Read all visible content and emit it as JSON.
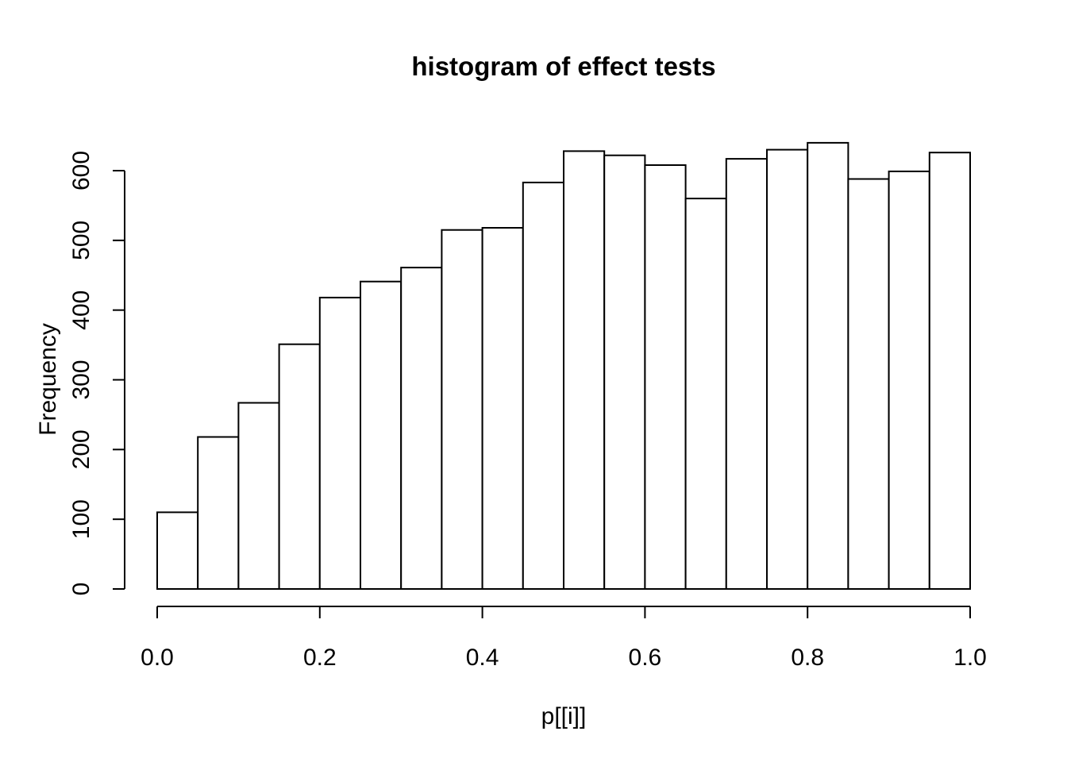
{
  "page": {
    "background_color": "#ffffff"
  },
  "chart_data": {
    "type": "bar",
    "subtype": "histogram",
    "title": "histogram of effect tests",
    "xlabel": "p[[i]]",
    "ylabel": "Frequency",
    "xlim": [
      0.0,
      1.0
    ],
    "ylim": [
      0,
      600
    ],
    "grid": "off",
    "legend": "none",
    "bin_width": 0.05,
    "bin_edges": [
      0.0,
      0.05,
      0.1,
      0.15,
      0.2,
      0.25,
      0.3,
      0.35,
      0.4,
      0.45,
      0.5,
      0.55,
      0.6,
      0.65,
      0.7,
      0.75,
      0.8,
      0.85,
      0.9,
      0.95,
      1.0
    ],
    "frequencies": [
      110,
      218,
      267,
      351,
      418,
      441,
      461,
      515,
      518,
      583,
      628,
      622,
      608,
      560,
      617,
      630,
      640,
      588,
      599,
      626
    ],
    "x_ticks": [
      {
        "value": 0.0,
        "label": "0.0"
      },
      {
        "value": 0.2,
        "label": "0.2"
      },
      {
        "value": 0.4,
        "label": "0.4"
      },
      {
        "value": 0.6,
        "label": "0.6"
      },
      {
        "value": 0.8,
        "label": "0.8"
      },
      {
        "value": 1.0,
        "label": "1.0"
      }
    ],
    "y_ticks": [
      {
        "value": 0,
        "label": "0"
      },
      {
        "value": 100,
        "label": "100"
      },
      {
        "value": 200,
        "label": "200"
      },
      {
        "value": 300,
        "label": "300"
      },
      {
        "value": 400,
        "label": "400"
      },
      {
        "value": 500,
        "label": "500"
      },
      {
        "value": 600,
        "label": "600"
      }
    ],
    "bar_fill": "#ffffff",
    "bar_stroke": "#000000",
    "axis_color": "#000000",
    "text_color": "#000000"
  }
}
